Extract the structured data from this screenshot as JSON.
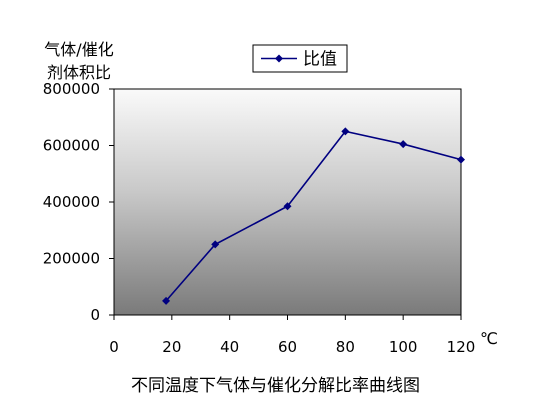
{
  "chart_data": {
    "type": "line",
    "caption": "不同温度下气体与催化分解比率曲线图",
    "ylabel_lines": [
      "气体/催化",
      "剂体积比"
    ],
    "x_unit": "℃",
    "xlim": [
      0,
      120
    ],
    "ylim": [
      0,
      800000
    ],
    "x_ticks": [
      "0",
      "20",
      "40",
      "60",
      "80",
      "100",
      "120"
    ],
    "y_ticks": [
      "0",
      "200000",
      "400000",
      "600000",
      "800000"
    ],
    "legend_position": "top",
    "grid": false,
    "series": [
      {
        "name": "比值",
        "color": "#000080",
        "x": [
          18,
          35,
          60,
          80,
          100,
          120
        ],
        "y": [
          50000,
          250000,
          385000,
          650000,
          605000,
          550000
        ]
      }
    ]
  }
}
